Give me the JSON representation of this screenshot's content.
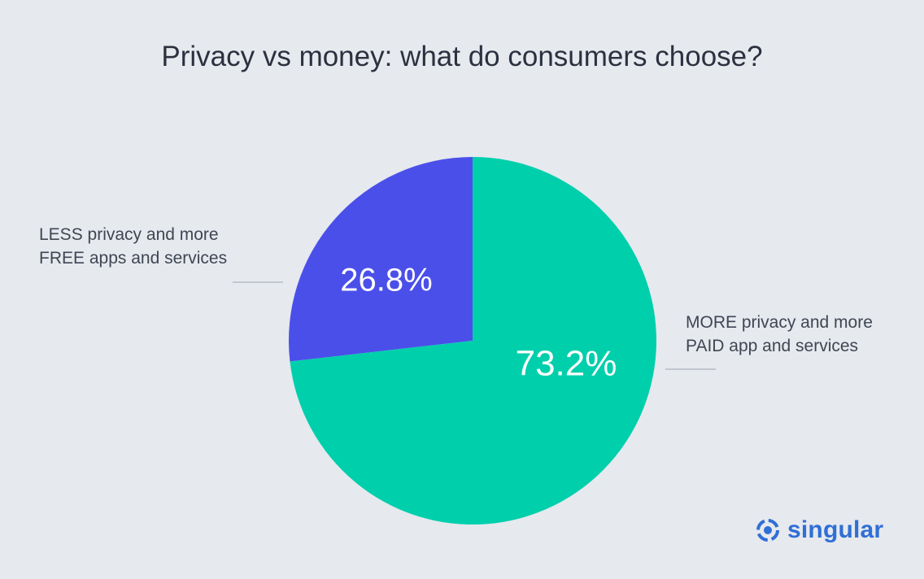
{
  "chart_data": {
    "type": "pie",
    "title": "Privacy vs money: what do consumers choose?",
    "slices": [
      {
        "label_lines": [
          "LESS privacy and more",
          "FREE apps and services"
        ],
        "value": 26.8,
        "value_label": "26.8%",
        "color": "#4b4fe9"
      },
      {
        "label_lines": [
          "MORE privacy and more",
          "PAID app and services"
        ],
        "value": 73.2,
        "value_label": "73.2%",
        "color": "#00cfac"
      }
    ]
  },
  "brand": {
    "name": "singular",
    "icon": "singular-logo-icon",
    "color": "#2f6fd6"
  }
}
